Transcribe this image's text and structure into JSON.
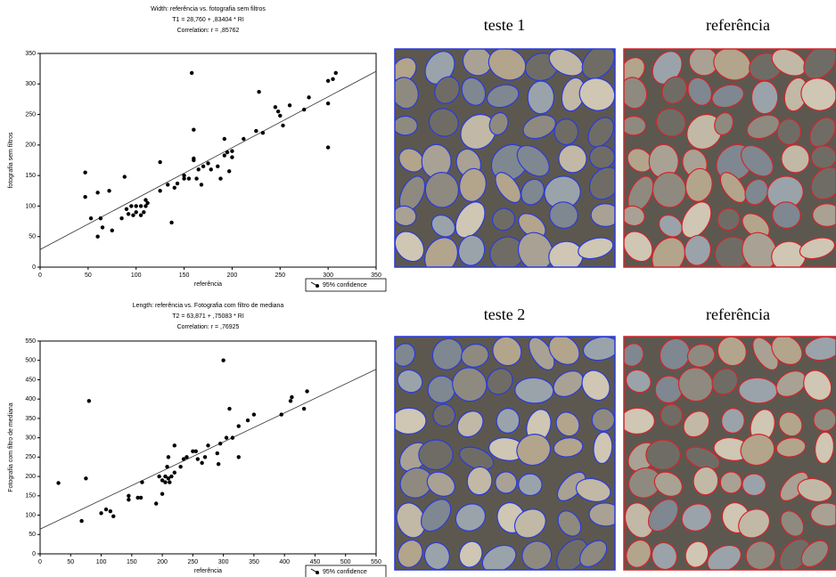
{
  "chart_data": [
    {
      "type": "scatter",
      "title": "Width: referência vs. fotografia sem filtros",
      "subtitle": "T1     = 28,760 + ,83404 * RI",
      "annotation": "Correlation: r = ,85762",
      "x_label": "referência",
      "y_label": "fotografia sem filtros",
      "legend": "95% confidence",
      "legend_position": "lower right",
      "color": "#000000",
      "fit_line": {
        "intercept": 28.76,
        "slope": 0.83404
      },
      "xlim": [
        0,
        350
      ],
      "ylim": [
        0,
        350
      ],
      "xticks": [
        0,
        50,
        100,
        150,
        200,
        250,
        300,
        350
      ],
      "yticks": [
        0,
        50,
        100,
        150,
        200,
        250,
        300,
        350
      ],
      "x": [
        47,
        47,
        53,
        60,
        60,
        63,
        65,
        72,
        75,
        85,
        88,
        90,
        92,
        95,
        97,
        100,
        100,
        105,
        105,
        108,
        110,
        110,
        112,
        125,
        125,
        133,
        137,
        140,
        143,
        150,
        150,
        155,
        158,
        160,
        160,
        160,
        163,
        165,
        168,
        170,
        175,
        178,
        185,
        188,
        192,
        192,
        195,
        197,
        200,
        200,
        212,
        225,
        228,
        232,
        245,
        248,
        250,
        253,
        260,
        275,
        280,
        300,
        300,
        300,
        305,
        308
      ],
      "values": [
        155,
        115,
        80,
        122,
        50,
        80,
        65,
        125,
        60,
        80,
        148,
        95,
        87,
        100,
        85,
        90,
        100,
        100,
        85,
        90,
        110,
        100,
        105,
        125,
        172,
        135,
        73,
        130,
        137,
        145,
        150,
        145,
        318,
        225,
        178,
        175,
        145,
        160,
        135,
        165,
        170,
        160,
        165,
        145,
        183,
        210,
        188,
        157,
        190,
        180,
        210,
        223,
        287,
        220,
        262,
        255,
        248,
        232,
        265,
        258,
        278,
        196,
        268,
        305,
        308,
        318
      ]
    },
    {
      "type": "scatter",
      "title": "Length: referência vs. Fotografia com filtro de mediana",
      "subtitle": "T2     = 63,871 + ,75083 * RI",
      "annotation": "Correlation: r = ,76925",
      "x_label": "referência",
      "y_label": "Fotografia com filtro de mediana",
      "legend": "95% confidence",
      "legend_position": "lower right",
      "color": "#000000",
      "fit_line": {
        "intercept": 63.871,
        "slope": 0.75083
      },
      "xlim": [
        0,
        550
      ],
      "ylim": [
        0,
        550
      ],
      "xticks": [
        0,
        50,
        100,
        150,
        200,
        250,
        300,
        350,
        400,
        450,
        500,
        550
      ],
      "yticks": [
        0,
        50,
        100,
        150,
        200,
        250,
        300,
        350,
        400,
        450,
        500,
        550
      ],
      "x": [
        30,
        68,
        75,
        80,
        100,
        108,
        115,
        120,
        145,
        145,
        160,
        165,
        167,
        190,
        195,
        200,
        200,
        205,
        205,
        208,
        210,
        210,
        212,
        215,
        220,
        220,
        230,
        235,
        240,
        250,
        255,
        258,
        265,
        270,
        275,
        290,
        292,
        295,
        300,
        305,
        310,
        315,
        325,
        325,
        340,
        350,
        395,
        410,
        412,
        432,
        437
      ],
      "values": [
        183,
        85,
        195,
        395,
        105,
        115,
        110,
        97,
        150,
        140,
        145,
        145,
        185,
        130,
        200,
        190,
        155,
        200,
        185,
        225,
        250,
        195,
        185,
        200,
        210,
        280,
        225,
        245,
        250,
        265,
        265,
        245,
        235,
        250,
        280,
        260,
        232,
        285,
        500,
        300,
        375,
        300,
        250,
        330,
        345,
        360,
        360,
        395,
        405,
        375,
        420
      ]
    }
  ],
  "panels": [
    {
      "label": "teste 1",
      "outline": "#2b3bd8"
    },
    {
      "label": "referência",
      "outline": "#d0262a"
    },
    {
      "label": "teste 2",
      "outline": "#2b3bd8"
    },
    {
      "label": "referência",
      "outline": "#d0262a"
    }
  ]
}
